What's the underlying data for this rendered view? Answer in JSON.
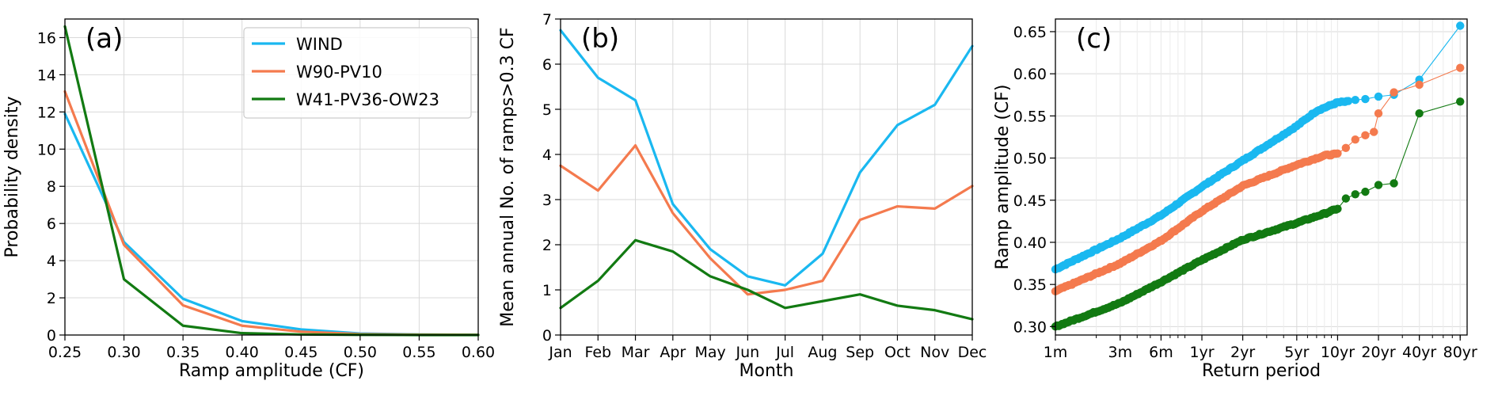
{
  "colors": {
    "wind": "#1ab8f0",
    "w90": "#f47a4e",
    "w41": "#127a12",
    "grid": "#d9d9d9",
    "axis": "#000000"
  },
  "chart_data": [
    {
      "type": "line",
      "panel_label": "(a)",
      "xlabel": "Ramp amplitude (CF)",
      "ylabel": "Probability density",
      "xlim": [
        0.25,
        0.6
      ],
      "ylim": [
        0,
        17
      ],
      "grid": true,
      "legend": "top-right",
      "x_ticks": [
        0.25,
        0.3,
        0.35,
        0.4,
        0.45,
        0.5,
        0.55,
        0.6
      ],
      "x_tick_labels": [
        "0.25",
        "0.30",
        "0.35",
        "0.40",
        "0.45",
        "0.50",
        "0.55",
        "0.60"
      ],
      "y_ticks": [
        0,
        2,
        4,
        6,
        8,
        10,
        12,
        14,
        16
      ],
      "y_tick_labels": [
        "0",
        "2",
        "4",
        "6",
        "8",
        "10",
        "12",
        "14",
        "16"
      ],
      "x": [
        0.25,
        0.3,
        0.35,
        0.4,
        0.45,
        0.5,
        0.55,
        0.6
      ],
      "series": [
        {
          "name": "WIND",
          "color": "#1ab8f0",
          "values": [
            11.9,
            5.0,
            1.95,
            0.75,
            0.3,
            0.08,
            0.03,
            0.01
          ]
        },
        {
          "name": "W90-PV10",
          "color": "#f47a4e",
          "values": [
            13.1,
            4.85,
            1.6,
            0.5,
            0.18,
            0.05,
            0.02,
            0.01
          ]
        },
        {
          "name": "W41-PV36-OW23",
          "color": "#127a12",
          "values": [
            16.6,
            3.0,
            0.5,
            0.1,
            0.03,
            0.01,
            0.0,
            0.0
          ]
        }
      ]
    },
    {
      "type": "line",
      "panel_label": "(b)",
      "xlabel": "Month",
      "ylabel": "Mean annual No. of ramps>0.3 CF",
      "ylim": [
        0,
        7
      ],
      "grid": true,
      "categories": [
        "Jan",
        "Feb",
        "Mar",
        "Apr",
        "May",
        "Jun",
        "Jul",
        "Aug",
        "Sep",
        "Oct",
        "Nov",
        "Dec"
      ],
      "y_ticks": [
        0,
        1,
        2,
        3,
        4,
        5,
        6,
        7
      ],
      "y_tick_labels": [
        "0",
        "1",
        "2",
        "3",
        "4",
        "5",
        "6",
        "7"
      ],
      "series": [
        {
          "name": "WIND",
          "color": "#1ab8f0",
          "values": [
            6.75,
            5.7,
            5.2,
            2.9,
            1.9,
            1.3,
            1.1,
            1.8,
            3.6,
            4.65,
            5.1,
            6.4
          ]
        },
        {
          "name": "W90-PV10",
          "color": "#f47a4e",
          "values": [
            3.75,
            3.2,
            4.2,
            2.7,
            1.7,
            0.9,
            1.0,
            1.2,
            2.55,
            2.85,
            2.8,
            3.3
          ]
        },
        {
          "name": "W41-PV36-OW23",
          "color": "#127a12",
          "values": [
            0.6,
            1.2,
            2.1,
            1.85,
            1.3,
            1.0,
            0.6,
            0.75,
            0.9,
            0.65,
            0.55,
            0.35
          ]
        }
      ]
    },
    {
      "type": "scatter",
      "panel_label": "(c)",
      "xlabel": "Return period",
      "ylabel": "Ramp amplitude (CF)",
      "x_scale": "log",
      "x_unit": "years",
      "xlim": [
        0.0833,
        90
      ],
      "ylim": [
        0.29,
        0.665
      ],
      "grid": true,
      "x_ticks": [
        0.0833,
        0.25,
        0.5,
        1,
        2,
        5,
        10,
        20,
        40,
        80
      ],
      "x_tick_labels": [
        "1m",
        "3m",
        "6m",
        "1yr",
        "2yr",
        "5yr",
        "10yr",
        "20yr",
        "40yr",
        "80yr"
      ],
      "y_ticks": [
        0.3,
        0.35,
        0.4,
        0.45,
        0.5,
        0.55,
        0.6,
        0.65
      ],
      "y_tick_labels": [
        "0.30",
        "0.35",
        "0.40",
        "0.45",
        "0.50",
        "0.55",
        "0.60",
        "0.65"
      ],
      "series": [
        {
          "name": "WIND",
          "color": "#1ab8f0",
          "curve": [
            [
              0.0833,
              0.368
            ],
            [
              0.25,
              0.405
            ],
            [
              0.5,
              0.432
            ],
            [
              1,
              0.466
            ],
            [
              2,
              0.497
            ],
            [
              5,
              0.538
            ],
            [
              7,
              0.556
            ],
            [
              10,
              0.566
            ],
            [
              12,
              0.567
            ]
          ],
          "tail": [
            [
              13.5,
              0.569
            ],
            [
              16,
              0.57
            ],
            [
              20,
              0.573
            ],
            [
              26,
              0.575
            ],
            [
              40,
              0.593
            ],
            [
              80,
              0.657
            ]
          ]
        },
        {
          "name": "W90-PV10",
          "color": "#f47a4e",
          "curve": [
            [
              0.0833,
              0.342
            ],
            [
              0.25,
              0.375
            ],
            [
              0.5,
              0.402
            ],
            [
              1,
              0.437
            ],
            [
              2,
              0.467
            ],
            [
              5,
              0.492
            ],
            [
              8,
              0.503
            ],
            [
              10,
              0.505
            ]
          ],
          "tail": [
            [
              11.5,
              0.512
            ],
            [
              13.5,
              0.522
            ],
            [
              16,
              0.527
            ],
            [
              18.5,
              0.531
            ],
            [
              20,
              0.553
            ],
            [
              26,
              0.578
            ],
            [
              40,
              0.587
            ],
            [
              80,
              0.607
            ]
          ]
        },
        {
          "name": "W41-PV36-OW23",
          "color": "#127a12",
          "curve": [
            [
              0.0833,
              0.3
            ],
            [
              0.25,
              0.328
            ],
            [
              0.5,
              0.353
            ],
            [
              1,
              0.379
            ],
            [
              2,
              0.403
            ],
            [
              5,
              0.423
            ],
            [
              8,
              0.434
            ],
            [
              10,
              0.44
            ]
          ],
          "tail": [
            [
              11.5,
              0.452
            ],
            [
              13.5,
              0.457
            ],
            [
              16,
              0.46
            ],
            [
              20,
              0.468
            ],
            [
              26,
              0.47
            ],
            [
              40,
              0.553
            ],
            [
              80,
              0.567
            ]
          ]
        }
      ]
    }
  ]
}
